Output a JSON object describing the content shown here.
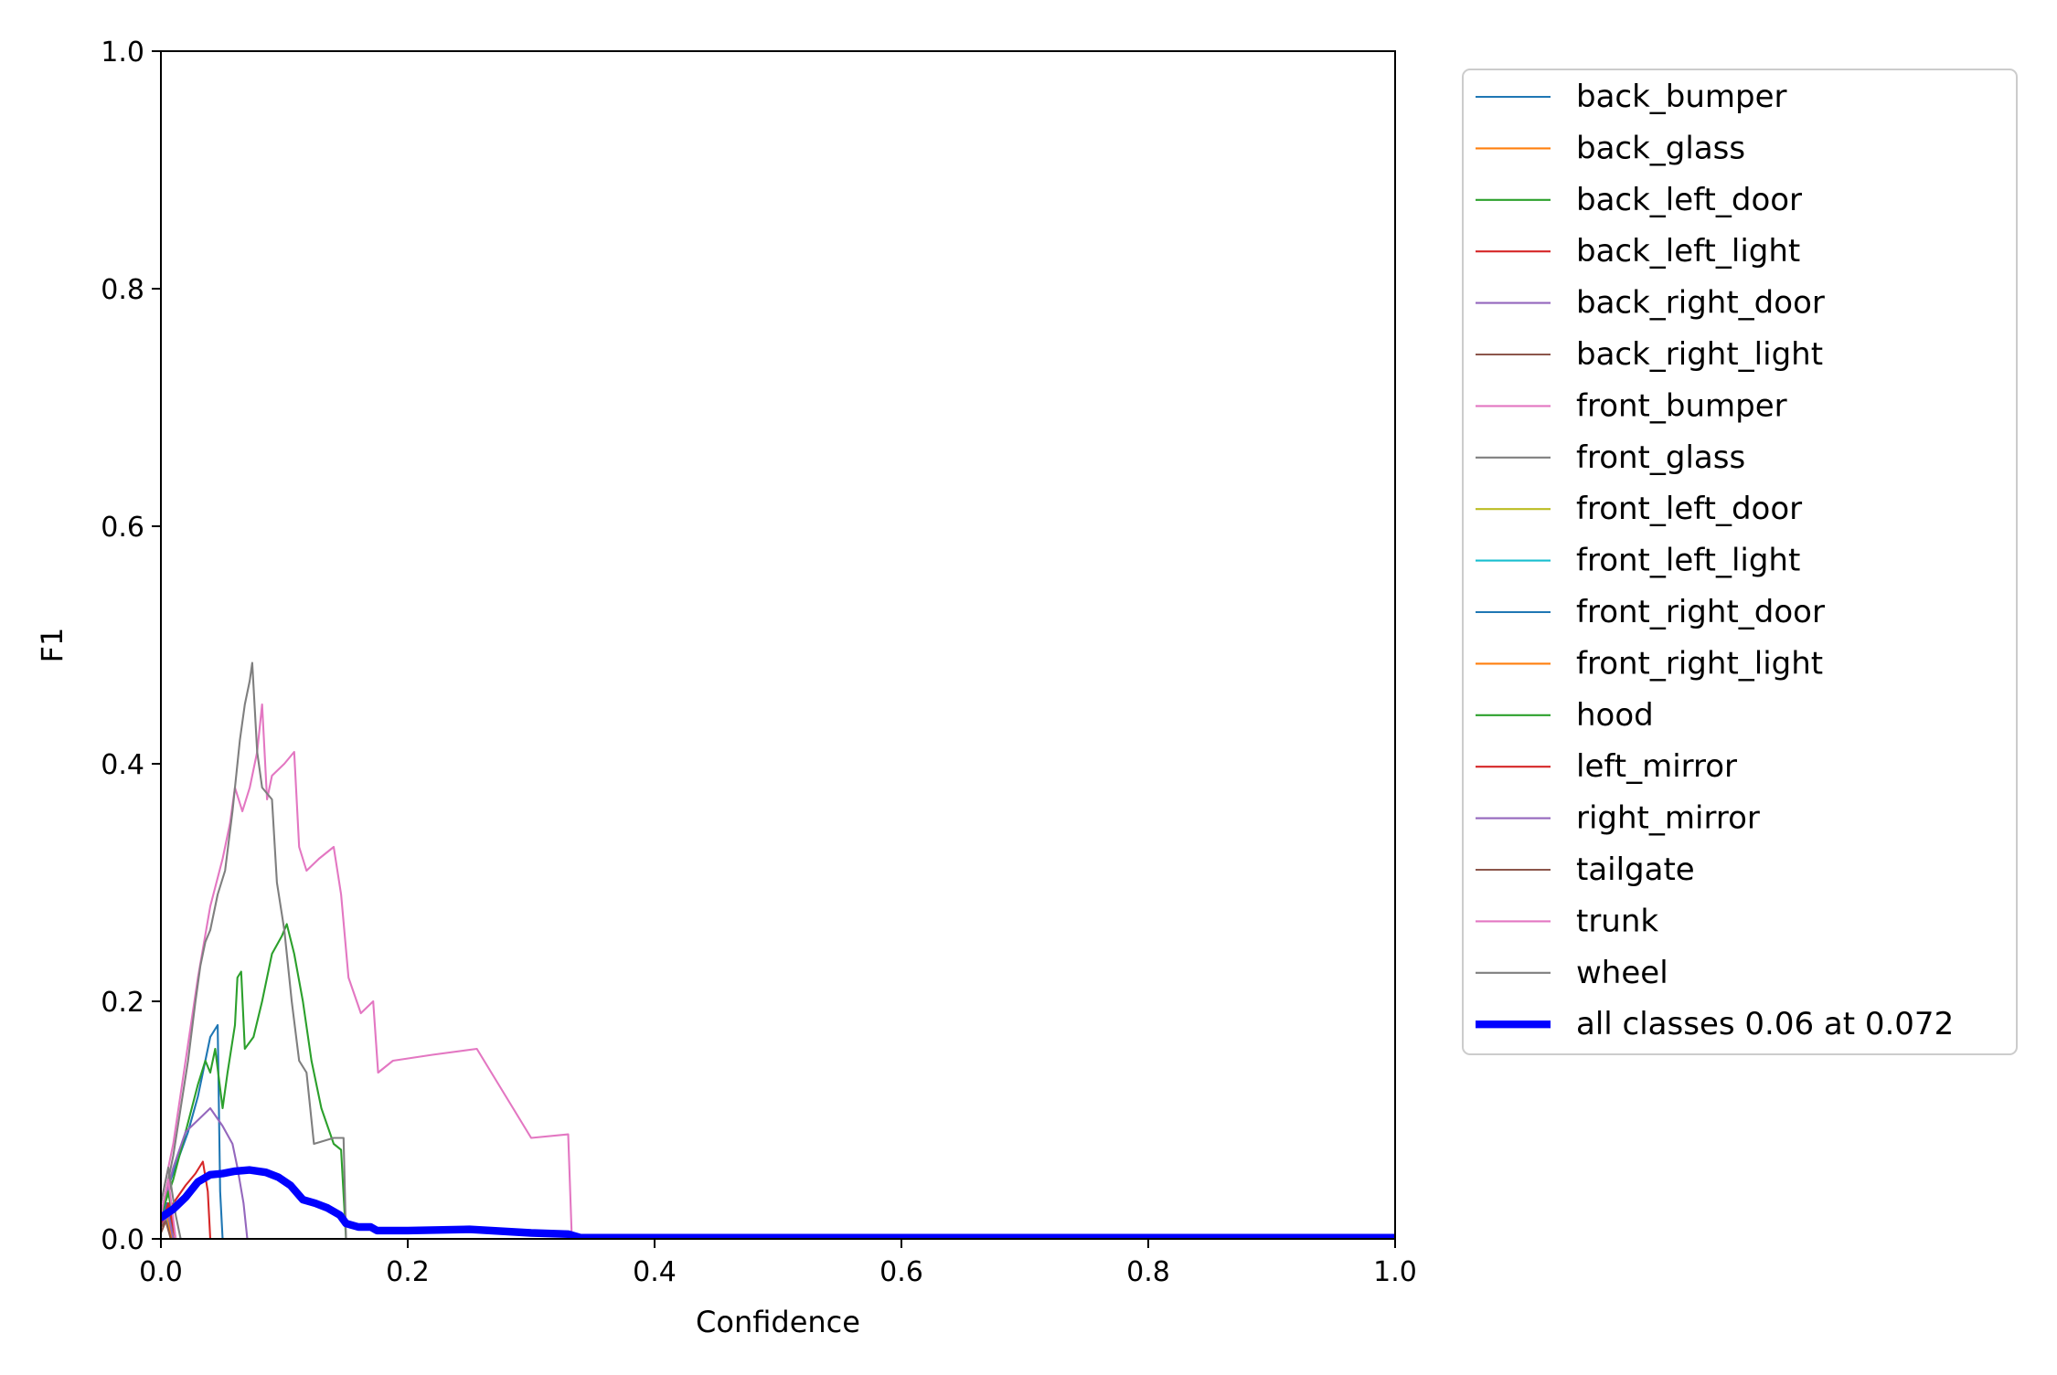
{
  "chart_data": {
    "type": "line",
    "title": "",
    "xlabel": "Confidence",
    "ylabel": "F1",
    "xlim": [
      0,
      1
    ],
    "ylim": [
      0,
      1
    ],
    "xticks": [
      "0.0",
      "0.2",
      "0.4",
      "0.6",
      "0.8",
      "1.0"
    ],
    "yticks": [
      "0.0",
      "0.2",
      "0.4",
      "0.6",
      "0.8",
      "1.0"
    ],
    "grid": false,
    "legend_position": "outside-right-top",
    "series": [
      {
        "name": "back_bumper",
        "color": "#1f77b4",
        "width": 1.5,
        "points": [
          [
            0,
            0.02
          ],
          [
            0.008,
            0.05
          ],
          [
            0.015,
            0.07
          ],
          [
            0.022,
            0.09
          ],
          [
            0.03,
            0.12
          ],
          [
            0.036,
            0.15
          ],
          [
            0.04,
            0.17
          ],
          [
            0.046,
            0.18
          ],
          [
            0.048,
            0.04
          ],
          [
            0.05,
            0
          ]
        ]
      },
      {
        "name": "back_glass",
        "color": "#ff7f0e",
        "width": 1.5,
        "points": [
          [
            0,
            0.01
          ],
          [
            0.004,
            0.03
          ],
          [
            0.008,
            0.015
          ],
          [
            0.012,
            0
          ]
        ]
      },
      {
        "name": "back_left_door",
        "color": "#2ca02c",
        "width": 1.5,
        "points": [
          [
            0,
            0.02
          ],
          [
            0.01,
            0.05
          ],
          [
            0.02,
            0.09
          ],
          [
            0.03,
            0.13
          ],
          [
            0.036,
            0.15
          ],
          [
            0.04,
            0.14
          ],
          [
            0.044,
            0.16
          ],
          [
            0.05,
            0.11
          ],
          [
            0.054,
            0.14
          ],
          [
            0.06,
            0.18
          ],
          [
            0.062,
            0.22
          ],
          [
            0.065,
            0.225
          ],
          [
            0.068,
            0.16
          ],
          [
            0.075,
            0.17
          ],
          [
            0.082,
            0.2
          ],
          [
            0.09,
            0.24
          ],
          [
            0.098,
            0.255
          ],
          [
            0.102,
            0.265
          ],
          [
            0.108,
            0.24
          ],
          [
            0.115,
            0.2
          ],
          [
            0.122,
            0.15
          ],
          [
            0.13,
            0.11
          ],
          [
            0.14,
            0.08
          ],
          [
            0.146,
            0.075
          ],
          [
            0.15,
            0
          ]
        ]
      },
      {
        "name": "back_left_light",
        "color": "#d62728",
        "width": 1.5,
        "points": [
          [
            0,
            0.01
          ],
          [
            0.01,
            0.03
          ],
          [
            0.02,
            0.045
          ],
          [
            0.028,
            0.055
          ],
          [
            0.034,
            0.065
          ],
          [
            0.038,
            0.04
          ],
          [
            0.04,
            0
          ]
        ]
      },
      {
        "name": "back_right_door",
        "color": "#9467bd",
        "width": 1.5,
        "points": [
          [
            0,
            0.02
          ],
          [
            0.01,
            0.06
          ],
          [
            0.02,
            0.09
          ],
          [
            0.03,
            0.1
          ],
          [
            0.04,
            0.11
          ],
          [
            0.05,
            0.095
          ],
          [
            0.058,
            0.08
          ],
          [
            0.062,
            0.06
          ],
          [
            0.067,
            0.03
          ],
          [
            0.07,
            0
          ]
        ]
      },
      {
        "name": "back_right_light",
        "color": "#8c564b",
        "width": 1.5,
        "points": [
          [
            0,
            0.005
          ],
          [
            0.006,
            0.02
          ],
          [
            0.01,
            0
          ]
        ]
      },
      {
        "name": "front_bumper",
        "color": "#e377c2",
        "width": 1.5,
        "points": [
          [
            0,
            0.03
          ],
          [
            0.01,
            0.08
          ],
          [
            0.02,
            0.15
          ],
          [
            0.03,
            0.22
          ],
          [
            0.04,
            0.28
          ],
          [
            0.05,
            0.32
          ],
          [
            0.056,
            0.35
          ],
          [
            0.06,
            0.38
          ],
          [
            0.066,
            0.36
          ],
          [
            0.072,
            0.38
          ],
          [
            0.078,
            0.41
          ],
          [
            0.082,
            0.45
          ],
          [
            0.086,
            0.37
          ],
          [
            0.09,
            0.39
          ],
          [
            0.1,
            0.4
          ],
          [
            0.108,
            0.41
          ],
          [
            0.112,
            0.33
          ],
          [
            0.118,
            0.31
          ],
          [
            0.128,
            0.32
          ],
          [
            0.14,
            0.33
          ],
          [
            0.146,
            0.29
          ],
          [
            0.152,
            0.22
          ],
          [
            0.162,
            0.19
          ],
          [
            0.172,
            0.2
          ],
          [
            0.176,
            0.14
          ],
          [
            0.188,
            0.15
          ],
          [
            0.22,
            0.155
          ],
          [
            0.256,
            0.16
          ],
          [
            0.3,
            0.085
          ],
          [
            0.33,
            0.088
          ],
          [
            0.333,
            0
          ]
        ]
      },
      {
        "name": "front_glass",
        "color": "#7f7f7f",
        "width": 1.5,
        "points": [
          [
            0,
            0.02
          ],
          [
            0.01,
            0.07
          ],
          [
            0.016,
            0.11
          ],
          [
            0.022,
            0.15
          ],
          [
            0.028,
            0.2
          ],
          [
            0.032,
            0.23
          ],
          [
            0.036,
            0.25
          ],
          [
            0.04,
            0.26
          ],
          [
            0.046,
            0.29
          ],
          [
            0.052,
            0.31
          ],
          [
            0.058,
            0.36
          ],
          [
            0.064,
            0.42
          ],
          [
            0.068,
            0.45
          ],
          [
            0.072,
            0.47
          ],
          [
            0.074,
            0.485
          ],
          [
            0.078,
            0.41
          ],
          [
            0.082,
            0.38
          ],
          [
            0.09,
            0.37
          ],
          [
            0.094,
            0.3
          ],
          [
            0.1,
            0.26
          ],
          [
            0.106,
            0.2
          ],
          [
            0.112,
            0.15
          ],
          [
            0.118,
            0.14
          ],
          [
            0.124,
            0.08
          ],
          [
            0.14,
            0.085
          ],
          [
            0.148,
            0.085
          ],
          [
            0.15,
            0
          ]
        ]
      },
      {
        "name": "front_left_door",
        "color": "#bcbd22",
        "width": 1.5,
        "points": [
          [
            0,
            0.01
          ],
          [
            0.004,
            0.02
          ],
          [
            0.008,
            0
          ]
        ]
      },
      {
        "name": "front_left_light",
        "color": "#17becf",
        "width": 1.5,
        "points": [
          [
            0,
            0.01
          ],
          [
            0.004,
            0.025
          ],
          [
            0.008,
            0
          ]
        ]
      },
      {
        "name": "front_right_door",
        "color": "#1f77b4",
        "width": 1.5,
        "points": [
          [
            0,
            0.015
          ],
          [
            0.005,
            0.03
          ],
          [
            0.01,
            0
          ]
        ]
      },
      {
        "name": "front_right_light",
        "color": "#ff7f0e",
        "width": 1.5,
        "points": [
          [
            0,
            0.01
          ],
          [
            0.005,
            0.02
          ],
          [
            0.009,
            0
          ]
        ]
      },
      {
        "name": "hood",
        "color": "#2ca02c",
        "width": 1.5,
        "points": [
          [
            0,
            0.02
          ],
          [
            0.006,
            0.04
          ],
          [
            0.012,
            0
          ]
        ]
      },
      {
        "name": "left_mirror",
        "color": "#d62728",
        "width": 1.5,
        "points": [
          [
            0,
            0.01
          ],
          [
            0.006,
            0.03
          ],
          [
            0.012,
            0
          ]
        ]
      },
      {
        "name": "right_mirror",
        "color": "#9467bd",
        "width": 1.5,
        "points": [
          [
            0,
            0.01
          ],
          [
            0.006,
            0.02
          ],
          [
            0.01,
            0
          ]
        ]
      },
      {
        "name": "tailgate",
        "color": "#8c564b",
        "width": 1.5,
        "points": [
          [
            0,
            0.01
          ],
          [
            0.004,
            0.015
          ],
          [
            0.008,
            0
          ]
        ]
      },
      {
        "name": "trunk",
        "color": "#e377c2",
        "width": 1.5,
        "points": [
          [
            0,
            0.02
          ],
          [
            0.006,
            0.05
          ],
          [
            0.012,
            0
          ]
        ]
      },
      {
        "name": "wheel",
        "color": "#7f7f7f",
        "width": 1.5,
        "points": [
          [
            0,
            0.03
          ],
          [
            0.006,
            0.06
          ],
          [
            0.012,
            0.02
          ],
          [
            0.016,
            0
          ]
        ]
      },
      {
        "name": "all classes 0.06 at 0.072",
        "color": "#0000ff",
        "width": 6,
        "points": [
          [
            0,
            0.018
          ],
          [
            0.01,
            0.025
          ],
          [
            0.02,
            0.035
          ],
          [
            0.03,
            0.048
          ],
          [
            0.04,
            0.054
          ],
          [
            0.05,
            0.055
          ],
          [
            0.06,
            0.057
          ],
          [
            0.072,
            0.058
          ],
          [
            0.085,
            0.056
          ],
          [
            0.095,
            0.052
          ],
          [
            0.105,
            0.045
          ],
          [
            0.115,
            0.033
          ],
          [
            0.125,
            0.03
          ],
          [
            0.135,
            0.026
          ],
          [
            0.145,
            0.02
          ],
          [
            0.15,
            0.013
          ],
          [
            0.16,
            0.01
          ],
          [
            0.17,
            0.01
          ],
          [
            0.175,
            0.007
          ],
          [
            0.2,
            0.007
          ],
          [
            0.25,
            0.008
          ],
          [
            0.3,
            0.005
          ],
          [
            0.33,
            0.004
          ],
          [
            0.34,
            0.001
          ],
          [
            1,
            0.001
          ]
        ]
      }
    ]
  }
}
